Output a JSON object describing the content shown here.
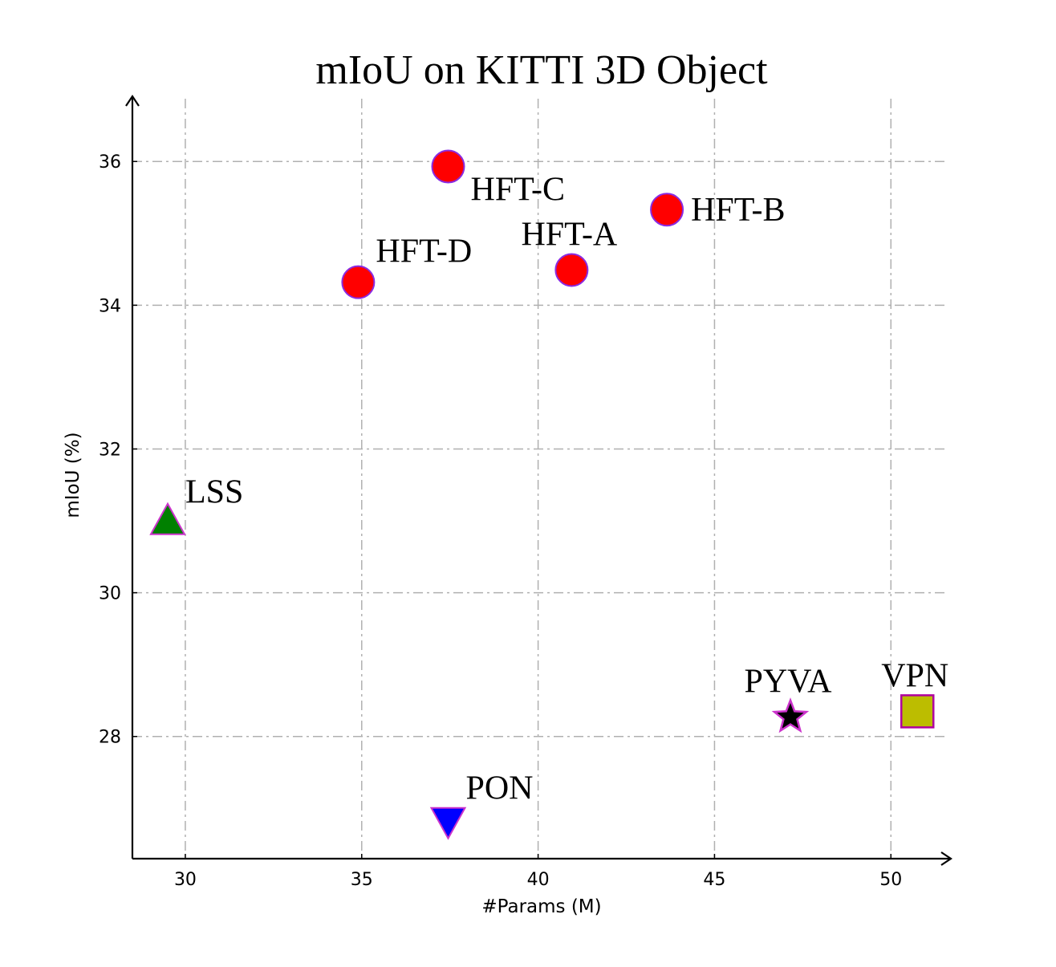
{
  "chart_data": {
    "type": "scatter",
    "title": "mIoU on KITTI 3D Object",
    "xlabel": "#Params (M)",
    "ylabel": "mIoU (%)",
    "xlim": [
      28.5,
      51.7
    ],
    "ylim": [
      26.3,
      36.65
    ],
    "xticks": [
      30,
      35,
      40,
      45,
      50
    ],
    "yticks": [
      28,
      30,
      32,
      34,
      36
    ],
    "grid": true,
    "points": [
      {
        "name": "HFT-C",
        "x": 37.45,
        "y": 35.93,
        "marker": "circle",
        "color": "#ff0000",
        "edge": "#8a2be2",
        "label_pos": "below-right"
      },
      {
        "name": "HFT-B",
        "x": 43.65,
        "y": 35.33,
        "marker": "circle",
        "color": "#ff0000",
        "edge": "#8a2be2",
        "label_pos": "right"
      },
      {
        "name": "HFT-A",
        "x": 40.95,
        "y": 34.49,
        "marker": "circle",
        "color": "#ff0000",
        "edge": "#8a2be2",
        "label_pos": "above"
      },
      {
        "name": "HFT-D",
        "x": 34.9,
        "y": 34.32,
        "marker": "circle",
        "color": "#ff0000",
        "edge": "#8a2be2",
        "label_pos": "above-right"
      },
      {
        "name": "LSS",
        "x": 29.5,
        "y": 30.97,
        "marker": "triangle-up",
        "color": "#008000",
        "edge": "#cc33cc",
        "label_pos": "above-right"
      },
      {
        "name": "PON",
        "x": 37.45,
        "y": 26.85,
        "marker": "triangle-down",
        "color": "#0000ff",
        "edge": "#cc33cc",
        "label_pos": "above-right"
      },
      {
        "name": "PYVA",
        "x": 47.15,
        "y": 28.27,
        "marker": "star",
        "color": "#000000",
        "edge": "#cc33cc",
        "label_pos": "above"
      },
      {
        "name": "VPN",
        "x": 50.75,
        "y": 28.35,
        "marker": "square",
        "color": "#bcbd00",
        "edge": "#b0009f",
        "label_pos": "above"
      }
    ]
  }
}
